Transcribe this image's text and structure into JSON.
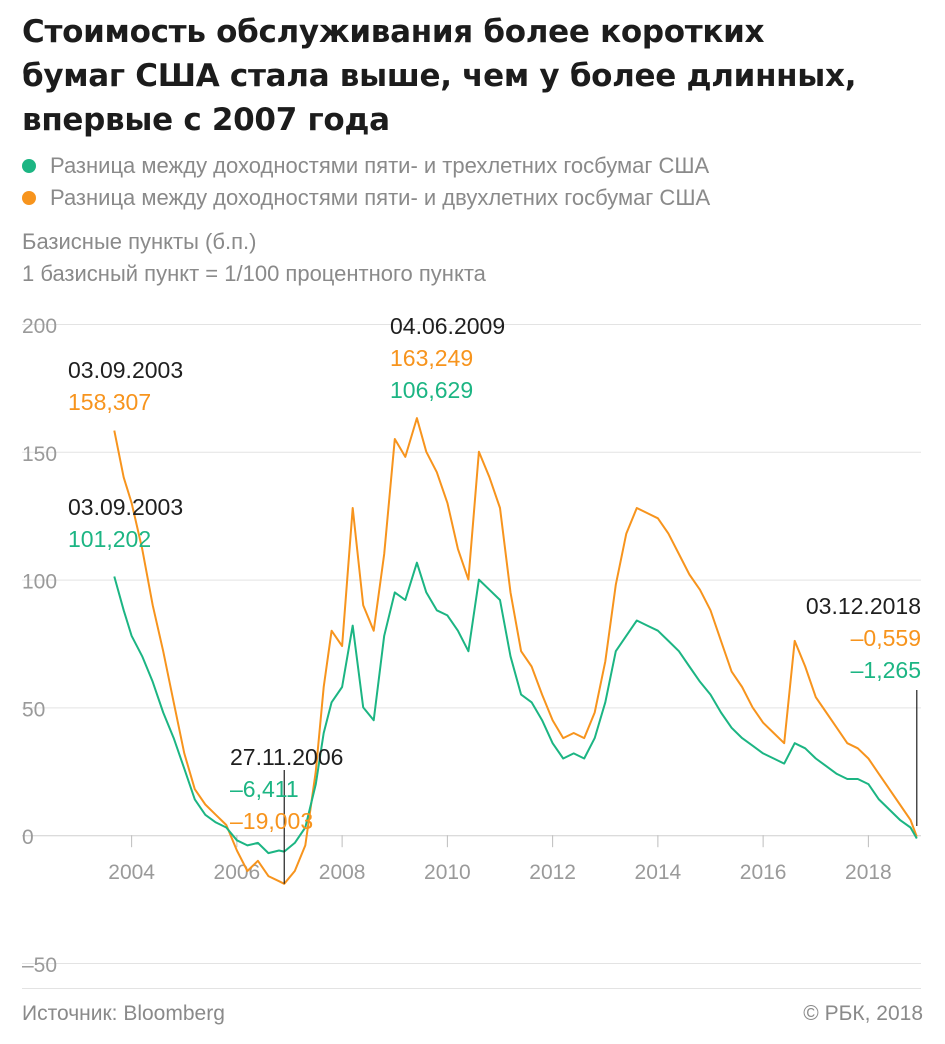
{
  "title_lines": [
    "Стоимость обслуживания более коротких",
    "бумаг США стала выше, чем у более длинных,",
    "впервые с 2007 года"
  ],
  "units": {
    "line1": "Базисные пункты (б.п.)",
    "line2": "1 базисный пункт = 1/100 процентного пункта"
  },
  "colors": {
    "green": "#1cb583",
    "orange": "#f7941d",
    "grid": "#e3e3e3",
    "axis_text": "#9a9a9a",
    "annotation": "#1f1f1f"
  },
  "footer": {
    "source": "Источник: Bloomberg",
    "copyright": "© РБК, 2018"
  },
  "annotations": [
    {
      "date_label": "03.09.2003",
      "value_label": "158,307",
      "series": "5y-2y"
    },
    {
      "date_label": "03.09.2003",
      "value_label": "101,202",
      "series": "5y-3y"
    },
    {
      "date_label": "27.11.2006",
      "value_label": "–6,411",
      "value_label_2": "–19,003"
    },
    {
      "date_label": "04.06.2009",
      "value_label": "163,249",
      "value_label_2": "106,629"
    },
    {
      "date_label": "03.12.2018",
      "value_label": "–0,559",
      "value_label_2": "–1,265"
    }
  ],
  "chart_data": {
    "type": "line",
    "ylim": [
      -50,
      200
    ],
    "xlim": [
      2003.0,
      2019.0
    ],
    "yticks": [
      -50,
      0,
      50,
      100,
      150,
      200
    ],
    "ytick_labels": [
      "–50",
      "0",
      "50",
      "100",
      "150",
      "200"
    ],
    "xticks": [
      2004,
      2006,
      2008,
      2010,
      2012,
      2014,
      2016,
      2018
    ],
    "xtick_labels": [
      "2004",
      "2006",
      "2008",
      "2010",
      "2012",
      "2014",
      "2016",
      "2018"
    ],
    "grid": true,
    "legend_placement": "top-left",
    "series": [
      {
        "name": "Разница между доходностями пяти- и трехлетних госбумаг США",
        "color": "green",
        "points": [
          [
            2003.67,
            101.2
          ],
          [
            2003.85,
            88
          ],
          [
            2004.0,
            78
          ],
          [
            2004.2,
            70
          ],
          [
            2004.4,
            60
          ],
          [
            2004.6,
            48
          ],
          [
            2004.8,
            38
          ],
          [
            2005.0,
            26
          ],
          [
            2005.2,
            14
          ],
          [
            2005.4,
            8
          ],
          [
            2005.6,
            5
          ],
          [
            2005.8,
            3
          ],
          [
            2006.0,
            -2
          ],
          [
            2006.2,
            -4
          ],
          [
            2006.4,
            -3
          ],
          [
            2006.6,
            -7
          ],
          [
            2006.8,
            -6
          ],
          [
            2006.9,
            -6.4
          ],
          [
            2007.1,
            -3
          ],
          [
            2007.3,
            3
          ],
          [
            2007.5,
            20
          ],
          [
            2007.65,
            40
          ],
          [
            2007.8,
            52
          ],
          [
            2008.0,
            58
          ],
          [
            2008.2,
            82
          ],
          [
            2008.4,
            50
          ],
          [
            2008.6,
            45
          ],
          [
            2008.8,
            78
          ],
          [
            2009.0,
            95
          ],
          [
            2009.2,
            92
          ],
          [
            2009.42,
            106.6
          ],
          [
            2009.6,
            95
          ],
          [
            2009.8,
            88
          ],
          [
            2010.0,
            86
          ],
          [
            2010.2,
            80
          ],
          [
            2010.4,
            72
          ],
          [
            2010.6,
            100
          ],
          [
            2010.8,
            96
          ],
          [
            2011.0,
            92
          ],
          [
            2011.2,
            70
          ],
          [
            2011.4,
            55
          ],
          [
            2011.6,
            52
          ],
          [
            2011.8,
            45
          ],
          [
            2012.0,
            36
          ],
          [
            2012.2,
            30
          ],
          [
            2012.4,
            32
          ],
          [
            2012.6,
            30
          ],
          [
            2012.8,
            38
          ],
          [
            2013.0,
            52
          ],
          [
            2013.2,
            72
          ],
          [
            2013.4,
            78
          ],
          [
            2013.6,
            84
          ],
          [
            2013.8,
            82
          ],
          [
            2014.0,
            80
          ],
          [
            2014.2,
            76
          ],
          [
            2014.4,
            72
          ],
          [
            2014.6,
            66
          ],
          [
            2014.8,
            60
          ],
          [
            2015.0,
            55
          ],
          [
            2015.2,
            48
          ],
          [
            2015.4,
            42
          ],
          [
            2015.6,
            38
          ],
          [
            2015.8,
            35
          ],
          [
            2016.0,
            32
          ],
          [
            2016.2,
            30
          ],
          [
            2016.4,
            28
          ],
          [
            2016.6,
            36
          ],
          [
            2016.8,
            34
          ],
          [
            2017.0,
            30
          ],
          [
            2017.2,
            27
          ],
          [
            2017.4,
            24
          ],
          [
            2017.6,
            22
          ],
          [
            2017.8,
            22
          ],
          [
            2018.0,
            20
          ],
          [
            2018.2,
            14
          ],
          [
            2018.4,
            10
          ],
          [
            2018.6,
            6
          ],
          [
            2018.8,
            3
          ],
          [
            2018.92,
            -1.3
          ]
        ]
      },
      {
        "name": "Разница между доходностями пяти- и двухлетних госбумаг США",
        "color": "orange",
        "points": [
          [
            2003.67,
            158.3
          ],
          [
            2003.85,
            140
          ],
          [
            2004.0,
            130
          ],
          [
            2004.2,
            112
          ],
          [
            2004.4,
            90
          ],
          [
            2004.6,
            72
          ],
          [
            2004.8,
            52
          ],
          [
            2005.0,
            32
          ],
          [
            2005.2,
            18
          ],
          [
            2005.4,
            12
          ],
          [
            2005.6,
            8
          ],
          [
            2005.8,
            4
          ],
          [
            2006.0,
            -6
          ],
          [
            2006.2,
            -14
          ],
          [
            2006.4,
            -10
          ],
          [
            2006.6,
            -16
          ],
          [
            2006.8,
            -18
          ],
          [
            2006.9,
            -19.0
          ],
          [
            2007.1,
            -14
          ],
          [
            2007.3,
            -4
          ],
          [
            2007.5,
            25
          ],
          [
            2007.65,
            58
          ],
          [
            2007.8,
            80
          ],
          [
            2008.0,
            74
          ],
          [
            2008.2,
            128
          ],
          [
            2008.4,
            90
          ],
          [
            2008.6,
            80
          ],
          [
            2008.8,
            110
          ],
          [
            2009.0,
            155
          ],
          [
            2009.2,
            148
          ],
          [
            2009.42,
            163.2
          ],
          [
            2009.6,
            150
          ],
          [
            2009.8,
            142
          ],
          [
            2010.0,
            130
          ],
          [
            2010.2,
            112
          ],
          [
            2010.4,
            100
          ],
          [
            2010.6,
            150
          ],
          [
            2010.8,
            140
          ],
          [
            2011.0,
            128
          ],
          [
            2011.2,
            95
          ],
          [
            2011.4,
            72
          ],
          [
            2011.6,
            66
          ],
          [
            2011.8,
            55
          ],
          [
            2012.0,
            45
          ],
          [
            2012.2,
            38
          ],
          [
            2012.4,
            40
          ],
          [
            2012.6,
            38
          ],
          [
            2012.8,
            48
          ],
          [
            2013.0,
            68
          ],
          [
            2013.2,
            98
          ],
          [
            2013.4,
            118
          ],
          [
            2013.6,
            128
          ],
          [
            2013.8,
            126
          ],
          [
            2014.0,
            124
          ],
          [
            2014.2,
            118
          ],
          [
            2014.4,
            110
          ],
          [
            2014.6,
            102
          ],
          [
            2014.8,
            96
          ],
          [
            2015.0,
            88
          ],
          [
            2015.2,
            76
          ],
          [
            2015.4,
            64
          ],
          [
            2015.6,
            58
          ],
          [
            2015.8,
            50
          ],
          [
            2016.0,
            44
          ],
          [
            2016.2,
            40
          ],
          [
            2016.4,
            36
          ],
          [
            2016.6,
            76
          ],
          [
            2016.8,
            66
          ],
          [
            2017.0,
            54
          ],
          [
            2017.2,
            48
          ],
          [
            2017.4,
            42
          ],
          [
            2017.6,
            36
          ],
          [
            2017.8,
            34
          ],
          [
            2018.0,
            30
          ],
          [
            2018.2,
            24
          ],
          [
            2018.4,
            18
          ],
          [
            2018.6,
            12
          ],
          [
            2018.8,
            6
          ],
          [
            2018.92,
            -0.6
          ]
        ]
      }
    ]
  }
}
